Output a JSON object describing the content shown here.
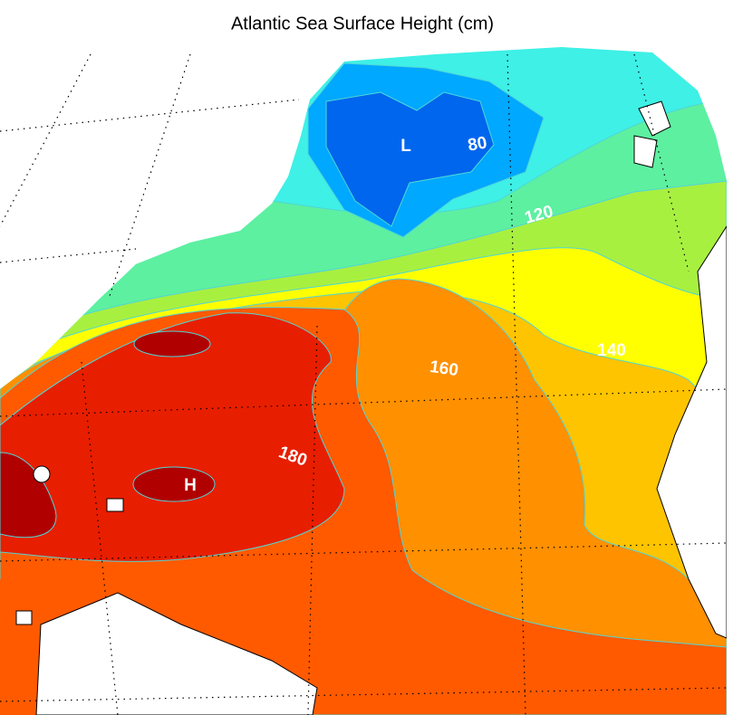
{
  "title": "Atlantic Sea Surface Height (cm)",
  "contour_labels": [
    80,
    120,
    140,
    160,
    180
  ],
  "extrema": {
    "low": "L",
    "high": "H"
  }
}
